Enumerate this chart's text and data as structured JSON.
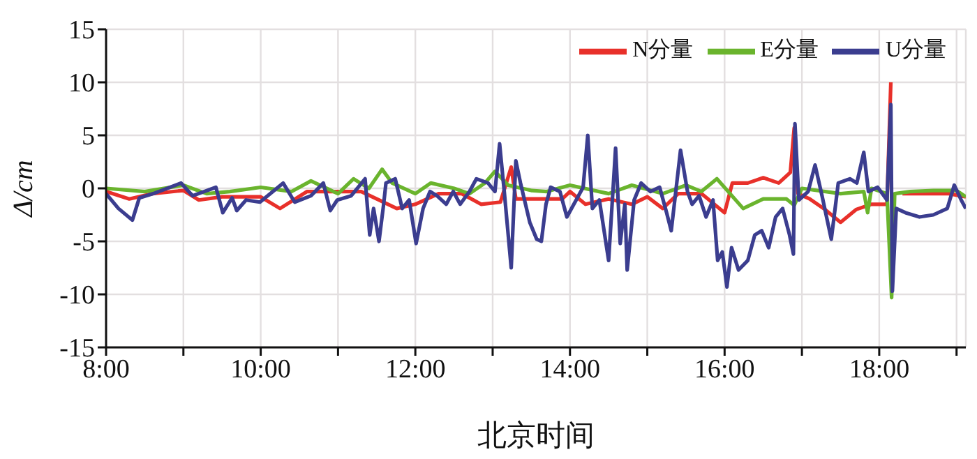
{
  "chart_data": {
    "type": "line",
    "xlabel": "北京时间",
    "ylabel": "Δ/cm",
    "xlim": [
      8,
      19.12
    ],
    "ylim": [
      -15,
      15
    ],
    "xticks": [
      {
        "value": 8,
        "label": "8:00"
      },
      {
        "value": 9,
        "label": null
      },
      {
        "value": 10,
        "label": "10:00"
      },
      {
        "value": 11,
        "label": null
      },
      {
        "value": 12,
        "label": "12:00"
      },
      {
        "value": 13,
        "label": null
      },
      {
        "value": 14,
        "label": "14:00"
      },
      {
        "value": 15,
        "label": null
      },
      {
        "value": 16,
        "label": "16:00"
      },
      {
        "value": 17,
        "label": null
      },
      {
        "value": 18,
        "label": "18:00"
      },
      {
        "value": 19,
        "label": null
      }
    ],
    "yticks": [
      -15,
      -10,
      -5,
      0,
      5,
      10,
      15
    ],
    "grid": true,
    "legend": "top right",
    "marker": "none",
    "line_style": "solid",
    "series": [
      {
        "name": "N分量",
        "color": "#e8302a",
        "x": [
          8.0,
          8.3,
          8.6,
          9.0,
          9.2,
          9.5,
          10.0,
          10.25,
          10.6,
          11.0,
          11.3,
          11.5,
          11.76,
          12.0,
          12.3,
          12.6,
          12.85,
          13.1,
          13.24,
          13.3,
          13.6,
          13.9,
          14.0,
          14.2,
          14.5,
          14.8,
          15.0,
          15.2,
          15.4,
          15.7,
          16.0,
          16.1,
          16.3,
          16.5,
          16.7,
          16.85,
          16.9,
          16.95,
          17.1,
          17.3,
          17.5,
          17.7,
          17.9,
          18.1,
          18.15,
          18.17,
          18.3,
          18.6,
          18.9,
          19.12
        ],
        "values": [
          -0.3,
          -1.0,
          -0.5,
          -0.2,
          -1.1,
          -0.8,
          -0.8,
          -1.9,
          -0.3,
          -0.3,
          -0.3,
          -1.0,
          -1.9,
          -1.5,
          -0.5,
          -0.5,
          -1.5,
          -1.3,
          2.0,
          -1.0,
          -1.0,
          -1.0,
          -0.3,
          -1.5,
          -1.0,
          -1.5,
          -0.8,
          -1.9,
          -0.5,
          -0.5,
          -2.3,
          0.5,
          0.5,
          1.0,
          0.5,
          1.5,
          5.7,
          -0.5,
          -1.0,
          -2.0,
          -3.2,
          -2.0,
          -1.5,
          -1.5,
          10.0,
          null,
          -0.5,
          -0.5,
          -0.5,
          -0.8
        ]
      },
      {
        "name": "E分量",
        "color": "#6ab42d",
        "x": [
          8.0,
          8.5,
          9.0,
          9.3,
          9.6,
          10.0,
          10.4,
          10.65,
          11.0,
          11.2,
          11.4,
          11.57,
          11.7,
          12.0,
          12.2,
          12.5,
          12.7,
          12.9,
          13.03,
          13.2,
          13.5,
          13.7,
          14.0,
          14.5,
          14.8,
          15.2,
          15.5,
          15.7,
          15.9,
          16.24,
          16.5,
          16.8,
          16.9,
          17.0,
          17.5,
          17.8,
          17.85,
          17.9,
          18.1,
          18.16,
          18.2,
          18.4,
          18.7,
          19.0,
          19.12
        ],
        "values": [
          0.0,
          -0.3,
          0.3,
          -0.5,
          -0.3,
          0.1,
          -0.3,
          0.7,
          -0.5,
          0.9,
          0.0,
          1.8,
          0.5,
          -0.5,
          0.5,
          0.0,
          -0.5,
          0.5,
          1.6,
          0.3,
          -0.2,
          -0.3,
          0.3,
          -0.5,
          0.3,
          -0.5,
          0.3,
          -0.3,
          0.9,
          -1.9,
          -1.0,
          -1.0,
          -1.6,
          0.0,
          -0.5,
          -0.3,
          -2.3,
          0.0,
          -0.5,
          -10.3,
          -0.5,
          -0.3,
          -0.2,
          -0.2,
          -0.8
        ]
      },
      {
        "name": "U分量",
        "color": "#3b3d8f",
        "x": [
          8.0,
          8.16,
          8.34,
          8.43,
          8.61,
          8.97,
          9.12,
          9.42,
          9.51,
          9.63,
          9.69,
          9.81,
          9.99,
          10.29,
          10.44,
          10.65,
          10.81,
          10.9,
          10.99,
          11.17,
          11.35,
          11.41,
          11.46,
          11.53,
          11.59,
          11.62,
          11.74,
          11.83,
          11.92,
          12.01,
          12.1,
          12.19,
          12.28,
          12.4,
          12.49,
          12.58,
          12.7,
          12.79,
          12.94,
          13.03,
          13.09,
          13.15,
          13.24,
          13.3,
          13.36,
          13.48,
          13.57,
          13.63,
          13.69,
          13.75,
          13.87,
          13.96,
          14.08,
          14.17,
          14.23,
          14.29,
          14.38,
          14.5,
          14.59,
          14.65,
          14.71,
          14.74,
          14.83,
          14.92,
          15.04,
          15.16,
          15.25,
          15.31,
          15.43,
          15.52,
          15.58,
          15.67,
          15.76,
          15.85,
          15.91,
          15.97,
          16.03,
          16.09,
          16.18,
          16.3,
          16.39,
          16.48,
          16.57,
          16.66,
          16.75,
          16.84,
          16.89,
          16.91,
          16.96,
          17.08,
          17.17,
          17.26,
          17.38,
          17.47,
          17.62,
          17.71,
          17.8,
          17.86,
          17.98,
          18.1,
          18.15,
          18.17,
          18.22,
          18.34,
          18.52,
          18.7,
          18.88,
          18.97,
          19.06,
          19.12
        ],
        "values": [
          -0.5,
          -1.9,
          -3.0,
          -0.9,
          -0.5,
          0.5,
          -0.7,
          0.1,
          -2.3,
          -0.9,
          -2.1,
          -1.1,
          -1.3,
          0.5,
          -1.3,
          -0.7,
          0.5,
          -2.1,
          -1.1,
          -0.7,
          0.9,
          -4.4,
          -1.9,
          -5.0,
          -1.5,
          0.5,
          0.9,
          -1.9,
          -1.1,
          -5.2,
          -1.9,
          -0.3,
          -0.7,
          -1.5,
          -0.3,
          -1.5,
          -0.3,
          0.9,
          0.5,
          -0.3,
          4.2,
          -0.3,
          -7.5,
          2.6,
          0.5,
          -3.2,
          -4.8,
          -5.0,
          -1.5,
          0.1,
          -0.3,
          -2.7,
          -1.1,
          0.1,
          5.0,
          -1.9,
          -1.1,
          -6.8,
          3.8,
          -5.2,
          -1.5,
          -7.7,
          -1.1,
          0.5,
          -0.3,
          0.1,
          -2.3,
          -4.0,
          3.6,
          -0.3,
          -1.5,
          -0.7,
          -2.7,
          -1.1,
          -6.8,
          -6.0,
          -9.3,
          -5.6,
          -7.7,
          -6.8,
          -4.4,
          -4.0,
          -5.6,
          -2.7,
          -1.9,
          -4.4,
          -6.2,
          6.1,
          -1.1,
          -0.3,
          2.2,
          -0.7,
          -4.8,
          0.5,
          0.9,
          0.5,
          3.4,
          -0.3,
          0.1,
          -1.1,
          7.9,
          -9.7,
          -1.9,
          -2.3,
          -2.7,
          -2.5,
          -1.9,
          0.3,
          -1.1,
          -1.9
        ]
      }
    ]
  }
}
